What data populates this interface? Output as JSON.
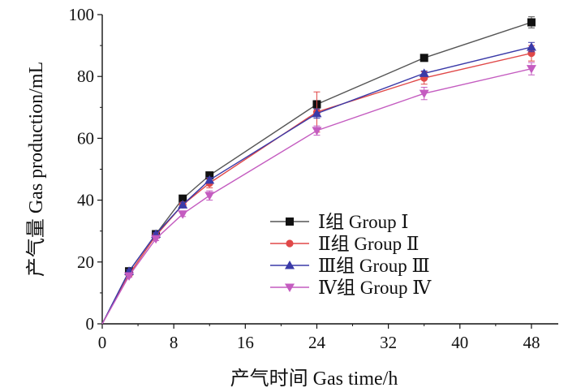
{
  "chart_data": {
    "type": "line",
    "title": "",
    "xlabel": "产气时间  Gas time/h",
    "ylabel": "产气量  Gas production/mL",
    "xlim": [
      0,
      51
    ],
    "ylim": [
      0,
      100
    ],
    "xticks": [
      0,
      8,
      16,
      24,
      32,
      40,
      48
    ],
    "yticks": [
      0,
      20,
      40,
      60,
      80,
      100
    ],
    "grid": false,
    "legend_position": "lower-right",
    "series": [
      {
        "name": "Ⅰ组  Group Ⅰ",
        "color": "#555555",
        "marker": "square",
        "x": [
          0,
          3,
          6,
          9,
          12,
          24,
          36,
          48
        ],
        "y": [
          0,
          17.0,
          29.0,
          40.5,
          48.0,
          71.0,
          86.0,
          97.5
        ],
        "error": [
          0,
          0.5,
          0.6,
          0.8,
          0.8,
          1.2,
          0.5,
          1.8
        ]
      },
      {
        "name": "Ⅱ组  Group Ⅱ",
        "color": "#e04848",
        "marker": "circle",
        "x": [
          0,
          3,
          6,
          9,
          12,
          24,
          36,
          48
        ],
        "y": [
          0,
          16.0,
          28.5,
          38.5,
          45.5,
          68.5,
          79.5,
          87.5
        ],
        "error": [
          0,
          0.5,
          0.6,
          0.8,
          1.5,
          6.5,
          2.0,
          2.5
        ]
      },
      {
        "name": "Ⅲ组  Group Ⅲ",
        "color": "#3a3aa8",
        "marker": "triangle-up",
        "x": [
          0,
          3,
          6,
          9,
          12,
          24,
          36,
          48
        ],
        "y": [
          0,
          17.0,
          29.0,
          38.5,
          46.5,
          68.0,
          81.0,
          89.5
        ],
        "error": [
          0,
          0.5,
          0.6,
          0.8,
          0.8,
          1.5,
          0.8,
          1.5
        ]
      },
      {
        "name": "Ⅳ组  Group Ⅳ",
        "color": "#c45cc0",
        "marker": "triangle-down",
        "x": [
          0,
          3,
          6,
          9,
          12,
          24,
          36,
          48
        ],
        "y": [
          0,
          15.5,
          27.5,
          35.5,
          41.5,
          62.5,
          74.5,
          82.5
        ],
        "error": [
          0,
          0.5,
          0.6,
          0.8,
          1.5,
          1.5,
          2.0,
          2.0
        ]
      }
    ]
  }
}
